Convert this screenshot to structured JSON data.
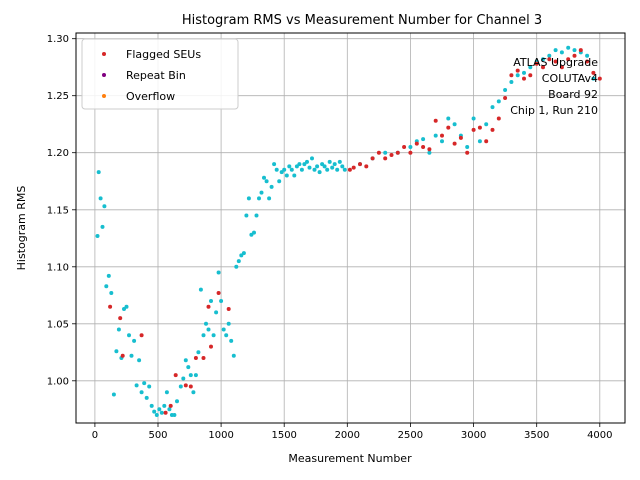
{
  "chart_data": {
    "type": "scatter",
    "title": "Histogram RMS vs Measurement Number for Channel 3",
    "xlabel": "Measurement Number",
    "ylabel": "Histogram RMS",
    "xlim": [
      -150,
      4200
    ],
    "ylim": [
      0.963,
      1.305
    ],
    "xticks": [
      0,
      500,
      1000,
      1500,
      2000,
      2500,
      3000,
      3500,
      4000
    ],
    "yticks": [
      1.0,
      1.05,
      1.1,
      1.15,
      1.2,
      1.25,
      1.3
    ],
    "xtick_labels": [
      "0",
      "500",
      "1000",
      "1500",
      "2000",
      "2500",
      "3000",
      "3500",
      "4000"
    ],
    "ytick_labels": [
      "1.00",
      "1.05",
      "1.10",
      "1.15",
      "1.20",
      "1.25",
      "1.30"
    ],
    "grid": true,
    "legend_position": "top-left",
    "legend": [
      {
        "label": "Flagged SEUs",
        "color": "#d62728"
      },
      {
        "label": "Repeat Bin",
        "color": "#800080"
      },
      {
        "label": "Overflow",
        "color": "#ff7f0e"
      }
    ],
    "annotations": [
      "ATLAS Upgrade",
      "COLUTAv4",
      "Board 92",
      "Chip 1, Run 210"
    ],
    "series": [
      {
        "color": "#17becf",
        "x": [
          20,
          30,
          45,
          60,
          75,
          90,
          110,
          130,
          150,
          170,
          190,
          210,
          230,
          250,
          270,
          290,
          310,
          330,
          350,
          370,
          390,
          410,
          430,
          450,
          470,
          490,
          510,
          530,
          550,
          570,
          590,
          610,
          630,
          650,
          680,
          700,
          720,
          740,
          760,
          780,
          800,
          820,
          840,
          860,
          880,
          900,
          920,
          940,
          960,
          980,
          1000,
          1020,
          1040,
          1060,
          1080,
          1100,
          1120,
          1140,
          1160,
          1180,
          1200,
          1220,
          1240,
          1260,
          1280,
          1300,
          1320,
          1340,
          1360,
          1380,
          1400,
          1420,
          1440,
          1460,
          1480,
          1500,
          1520,
          1540,
          1560,
          1580,
          1600,
          1620,
          1640,
          1660,
          1680,
          1700,
          1720,
          1740,
          1760,
          1780,
          1800,
          1820,
          1840,
          1860,
          1880,
          1900,
          1920,
          1940,
          1960,
          1980,
          2100,
          2200,
          2300,
          2400,
          2500,
          2550,
          2600,
          2650,
          2700,
          2750,
          2800,
          2850,
          2900,
          2950,
          3000,
          3050,
          3100,
          3150,
          3200,
          3250,
          3300,
          3350,
          3400,
          3450,
          3500,
          3550,
          3600,
          3650,
          3700,
          3750,
          3800,
          3850,
          3900,
          3950
        ],
        "y": [
          1.127,
          1.183,
          1.16,
          1.135,
          1.153,
          1.083,
          1.092,
          1.077,
          0.988,
          1.026,
          1.045,
          1.02,
          1.063,
          1.065,
          1.04,
          1.022,
          1.035,
          0.996,
          1.018,
          0.99,
          0.998,
          0.985,
          0.995,
          0.978,
          0.973,
          0.97,
          0.975,
          0.972,
          0.978,
          0.99,
          0.975,
          0.97,
          0.97,
          0.982,
          0.995,
          1.002,
          1.018,
          1.012,
          1.005,
          0.99,
          1.005,
          1.025,
          1.08,
          1.04,
          1.05,
          1.045,
          1.07,
          1.04,
          1.06,
          1.095,
          1.07,
          1.045,
          1.04,
          1.05,
          1.035,
          1.022,
          1.1,
          1.105,
          1.11,
          1.112,
          1.145,
          1.16,
          1.128,
          1.13,
          1.145,
          1.16,
          1.165,
          1.178,
          1.175,
          1.16,
          1.17,
          1.19,
          1.185,
          1.175,
          1.183,
          1.185,
          1.18,
          1.188,
          1.185,
          1.18,
          1.188,
          1.19,
          1.185,
          1.19,
          1.192,
          1.187,
          1.195,
          1.185,
          1.188,
          1.183,
          1.19,
          1.188,
          1.185,
          1.192,
          1.187,
          1.19,
          1.185,
          1.192,
          1.188,
          1.185,
          1.19,
          1.195,
          1.2,
          1.2,
          1.205,
          1.21,
          1.212,
          1.2,
          1.215,
          1.21,
          1.23,
          1.225,
          1.215,
          1.205,
          1.23,
          1.21,
          1.225,
          1.24,
          1.245,
          1.255,
          1.262,
          1.268,
          1.27,
          1.275,
          1.28,
          1.282,
          1.285,
          1.29,
          1.288,
          1.292,
          1.29,
          1.288,
          1.285,
          1.265
        ]
      },
      {
        "color": "#d62728",
        "x": [
          120,
          200,
          220,
          370,
          560,
          600,
          640,
          720,
          760,
          800,
          860,
          900,
          920,
          980,
          1060,
          2020,
          2050,
          2100,
          2150,
          2200,
          2250,
          2300,
          2350,
          2400,
          2450,
          2500,
          2550,
          2600,
          2650,
          2700,
          2750,
          2800,
          2850,
          2900,
          2950,
          3000,
          3050,
          3100,
          3150,
          3200,
          3250,
          3300,
          3350,
          3400,
          3450,
          3500,
          3550,
          3600,
          3650,
          3700,
          3750,
          3800,
          3850,
          3900,
          3950,
          4000
        ],
        "y": [
          1.065,
          1.055,
          1.022,
          1.04,
          0.972,
          0.978,
          1.005,
          0.996,
          0.995,
          1.02,
          1.02,
          1.065,
          1.03,
          1.077,
          1.063,
          1.185,
          1.187,
          1.19,
          1.188,
          1.195,
          1.2,
          1.195,
          1.198,
          1.2,
          1.205,
          1.2,
          1.208,
          1.205,
          1.203,
          1.228,
          1.215,
          1.222,
          1.208,
          1.213,
          1.2,
          1.22,
          1.222,
          1.21,
          1.22,
          1.23,
          1.248,
          1.268,
          1.272,
          1.265,
          1.268,
          1.278,
          1.275,
          1.282,
          1.28,
          1.275,
          1.282,
          1.285,
          1.29,
          1.28,
          1.27,
          1.265
        ]
      }
    ]
  }
}
